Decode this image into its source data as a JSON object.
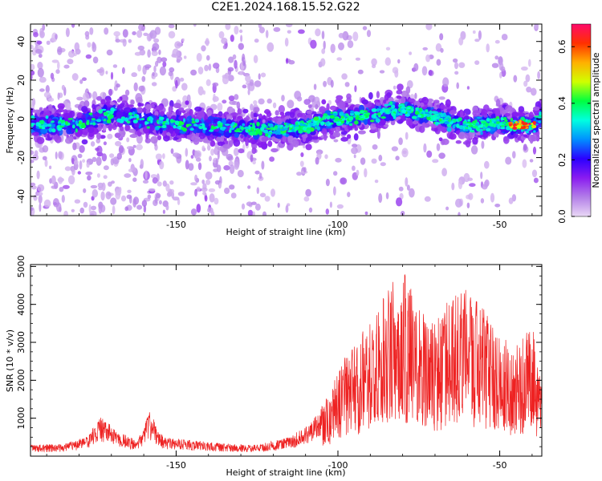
{
  "title": "C2E1.2024.168.15.52.G22",
  "chart_data": [
    {
      "type": "heatmap",
      "xlabel": "Height of straight line (km)",
      "ylabel": "Frequency (Hz)",
      "xlim": [
        -195,
        -37
      ],
      "ylim": [
        -50,
        49
      ],
      "xticks": [
        -150,
        -100,
        -50
      ],
      "xtick_labels": [
        "-150",
        "-100",
        "-50"
      ],
      "yticks": [
        -40,
        -20,
        0,
        20,
        40
      ],
      "ytick_labels": [
        "-40",
        "-20",
        "0",
        "20",
        "40"
      ],
      "colorbar": {
        "label": "Normalized spectral amplitude",
        "range": [
          0,
          0.68
        ],
        "ticks": [
          0.0,
          0.2,
          0.4,
          0.6
        ],
        "tick_labels": [
          "0.0",
          "0.2",
          "0.4",
          "0.6"
        ],
        "colormap": [
          "#e9d8f5",
          "#b37fe8",
          "#8a1cf0",
          "#2b00ff",
          "#0090ff",
          "#00ffe0",
          "#00ff40",
          "#d0ff00",
          "#ffb000",
          "#ff3000",
          "#ff0a6a"
        ]
      },
      "band_center": [
        [
          -195,
          -3
        ],
        [
          -180,
          -3
        ],
        [
          -170,
          3
        ],
        [
          -160,
          -1
        ],
        [
          -150,
          -3
        ],
        [
          -140,
          -4
        ],
        [
          -130,
          -5
        ],
        [
          -120,
          -6
        ],
        [
          -110,
          -4
        ],
        [
          -100,
          0
        ],
        [
          -90,
          2
        ],
        [
          -80,
          5
        ],
        [
          -70,
          1
        ],
        [
          -60,
          -4
        ],
        [
          -50,
          -2
        ],
        [
          -40,
          -4
        ],
        [
          -37,
          2
        ]
      ],
      "grid": false
    },
    {
      "type": "line",
      "xlabel": "Height of straight line (km)",
      "ylabel": "SNR (10 * v/v)",
      "xlim": [
        -195,
        -37
      ],
      "ylim": [
        0,
        5050
      ],
      "xticks": [
        -150,
        -100,
        -50
      ],
      "xtick_labels": [
        "-150",
        "-100",
        "-50"
      ],
      "yticks": [
        1000,
        2000,
        3000,
        4000,
        5000
      ],
      "ytick_labels": [
        "1000",
        "2000",
        "3000",
        "4000",
        "5000"
      ],
      "color": "#ee2222",
      "envelope": [
        [
          -195,
          300
        ],
        [
          -185,
          320
        ],
        [
          -178,
          500
        ],
        [
          -173,
          1050
        ],
        [
          -168,
          650
        ],
        [
          -162,
          420
        ],
        [
          -158,
          1200
        ],
        [
          -154,
          500
        ],
        [
          -145,
          420
        ],
        [
          -135,
          330
        ],
        [
          -125,
          300
        ],
        [
          -115,
          500
        ],
        [
          -108,
          900
        ],
        [
          -103,
          1600
        ],
        [
          -100,
          2400
        ],
        [
          -95,
          2900
        ],
        [
          -90,
          3700
        ],
        [
          -85,
          4400
        ],
        [
          -80,
          4950
        ],
        [
          -75,
          3900
        ],
        [
          -70,
          3600
        ],
        [
          -65,
          4200
        ],
        [
          -60,
          4400
        ],
        [
          -55,
          3900
        ],
        [
          -50,
          3200
        ],
        [
          -45,
          2900
        ],
        [
          -40,
          3500
        ],
        [
          -37,
          1800
        ]
      ],
      "grid": false
    }
  ]
}
